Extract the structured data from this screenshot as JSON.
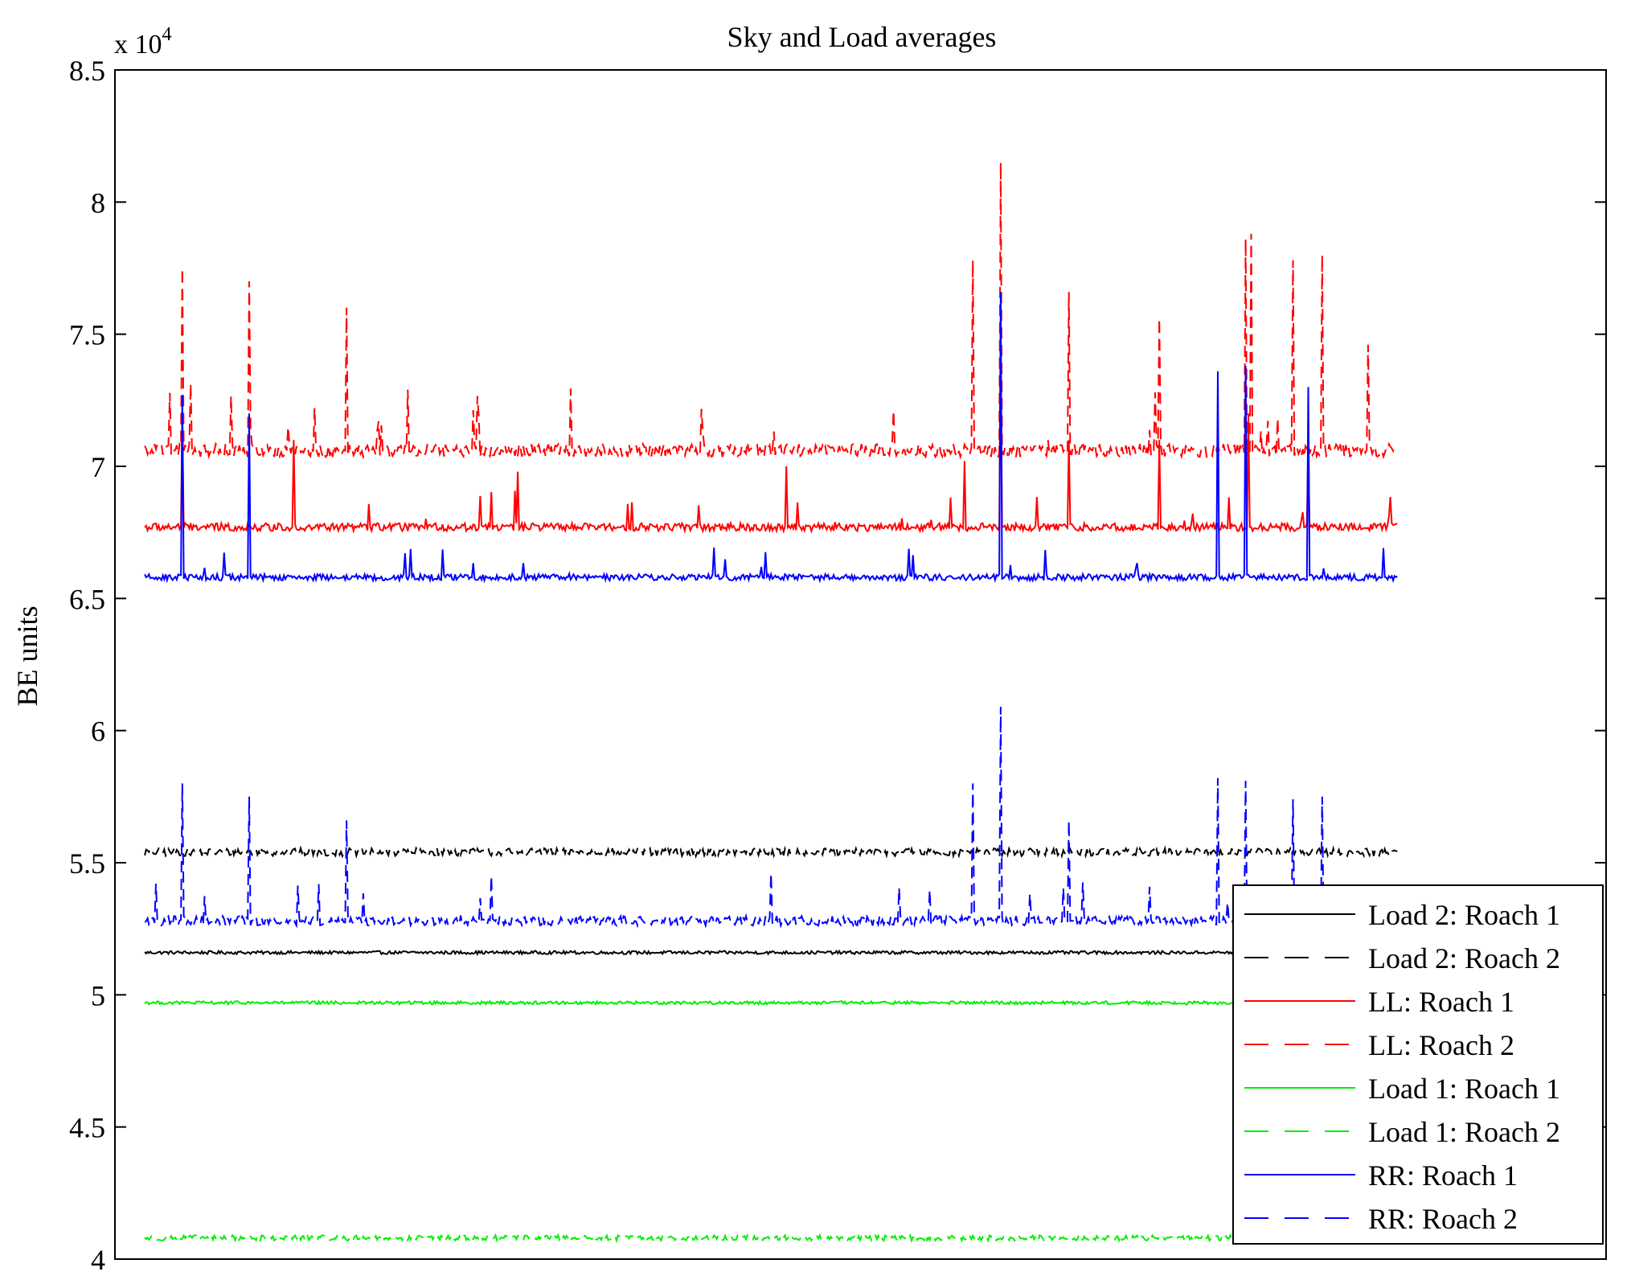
{
  "chart_data": {
    "type": "line",
    "title": "Sky and Load averages",
    "xlabel": "",
    "ylabel": "BE units",
    "y_exponent_label": "x 10",
    "y_exponent_power": "4",
    "ylim": [
      4,
      8.5
    ],
    "y_ticks": [
      "4",
      "4.5",
      "5",
      "5.5",
      "6",
      "6.5",
      "7",
      "7.5",
      "8",
      "8.5"
    ],
    "x_ticks_visible": false,
    "x_range": [
      0,
      1
    ],
    "data_extent": [
      0.02,
      0.86
    ],
    "grid": false,
    "legend_position": "bottom-right",
    "series": [
      {
        "name": "Load 2: Roach 1",
        "color": "#000000",
        "dash": "solid",
        "baseline": 5.16,
        "noise": 0.006,
        "spikes": []
      },
      {
        "name": "Load 2: Roach 2",
        "color": "#000000",
        "dash": "dashed",
        "baseline": 5.54,
        "noise": 0.015,
        "spikes": []
      },
      {
        "name": "LL: Roach 1",
        "color": "#ff0000",
        "dash": "solid",
        "baseline": 6.77,
        "noise": 0.015,
        "spikes": [
          [
            0.045,
            7.2
          ],
          [
            0.12,
            7.1
          ],
          [
            0.27,
            6.98
          ],
          [
            0.45,
            7.0
          ],
          [
            0.57,
            7.02
          ],
          [
            0.594,
            7.5
          ],
          [
            0.64,
            7.1
          ],
          [
            0.7,
            7.1
          ],
          [
            0.76,
            7.2
          ],
          [
            0.8,
            7.1
          ]
        ]
      },
      {
        "name": "LL: Roach 2",
        "color": "#ff0000",
        "dash": "dashed",
        "baseline": 7.06,
        "noise": 0.025,
        "spikes": [
          [
            0.045,
            7.75
          ],
          [
            0.09,
            7.7
          ],
          [
            0.155,
            7.6
          ],
          [
            0.575,
            7.78
          ],
          [
            0.594,
            8.15
          ],
          [
            0.64,
            7.66
          ],
          [
            0.7,
            7.56
          ],
          [
            0.758,
            7.86
          ],
          [
            0.762,
            7.88
          ],
          [
            0.79,
            7.78
          ],
          [
            0.81,
            7.8
          ],
          [
            0.84,
            7.46
          ]
        ]
      },
      {
        "name": "Load 1: Roach 1",
        "color": "#00ee00",
        "dash": "solid",
        "baseline": 4.97,
        "noise": 0.006,
        "spikes": []
      },
      {
        "name": "Load 1: Roach 2",
        "color": "#00ee00",
        "dash": "dashed",
        "baseline": 4.08,
        "noise": 0.01,
        "spikes": []
      },
      {
        "name": "RR: Roach 1",
        "color": "#0000ff",
        "dash": "solid",
        "baseline": 6.58,
        "noise": 0.012,
        "spikes": [
          [
            0.045,
            7.27
          ],
          [
            0.09,
            7.2
          ],
          [
            0.594,
            7.66
          ],
          [
            0.74,
            7.36
          ],
          [
            0.758,
            7.38
          ],
          [
            0.8,
            7.3
          ]
        ]
      },
      {
        "name": "RR: Roach 2",
        "color": "#0000ff",
        "dash": "dashed",
        "baseline": 5.28,
        "noise": 0.018,
        "spikes": [
          [
            0.045,
            5.8
          ],
          [
            0.09,
            5.75
          ],
          [
            0.155,
            5.66
          ],
          [
            0.575,
            5.8
          ],
          [
            0.594,
            6.09
          ],
          [
            0.64,
            5.66
          ],
          [
            0.74,
            5.82
          ],
          [
            0.758,
            5.81
          ],
          [
            0.79,
            5.74
          ],
          [
            0.81,
            5.75
          ]
        ]
      }
    ]
  }
}
